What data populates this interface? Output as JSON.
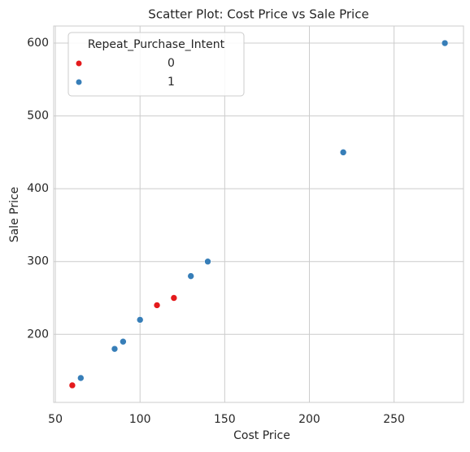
{
  "chart_data": {
    "type": "scatter",
    "title": "Scatter Plot: Cost Price vs Sale Price",
    "x_label": "Cost Price",
    "y_label": "Sale Price",
    "legend_title": "Repeat_Purchase_Intent",
    "legend_position": "upper left",
    "grid": true,
    "xlim": [
      49,
      291
    ],
    "xticks": [
      50,
      100,
      150,
      200,
      250
    ],
    "ylim": [
      106.5,
      623.5
    ],
    "yticks": [
      200,
      300,
      400,
      500,
      600
    ],
    "series": [
      {
        "name": "0",
        "color": "#e41a1c",
        "x": [
          60,
          110,
          120
        ],
        "values": [
          130,
          240,
          250
        ]
      },
      {
        "name": "1",
        "color": "#377eb8",
        "x": [
          65,
          85,
          90,
          100,
          130,
          140,
          220,
          280
        ],
        "values": [
          140,
          180,
          190,
          220,
          280,
          300,
          450,
          600
        ]
      }
    ]
  }
}
